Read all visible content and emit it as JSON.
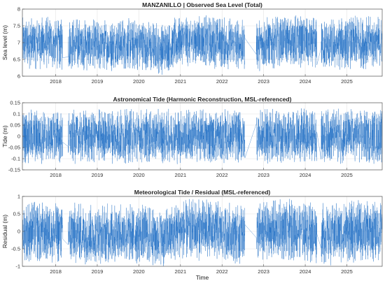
{
  "chart_data": [
    {
      "type": "line",
      "title": "MANZANILLO | Observed Sea Level (Total)",
      "xlabel": "",
      "ylabel": "Sea level (m)",
      "xlim": [
        2017.2,
        2025.85
      ],
      "ylim": [
        6,
        8
      ],
      "xticks": [
        "2018",
        "2019",
        "2020",
        "2021",
        "2022",
        "2023",
        "2024",
        "2025"
      ],
      "yticks": [
        "6",
        "6.5",
        "7",
        "7.5",
        "8"
      ],
      "grid": true,
      "color": "#1f6fc4",
      "series": [
        {
          "x": [
            2017.2,
            2017.7,
            2018.0,
            2018.12,
            2018.22,
            2018.3,
            2018.6,
            2019.0,
            2019.5,
            2020.0,
            2020.4,
            2020.6,
            2021.0,
            2021.5,
            2022.0,
            2022.3,
            2022.5,
            2022.6,
            2022.9,
            2023.4,
            2023.9,
            2024.2,
            2024.3,
            2024.35,
            2024.38,
            2024.5,
            2025.0,
            2025.5,
            2025.85
          ],
          "mean": [
            7.0,
            7.0,
            6.95,
            6.95,
            null,
            6.95,
            6.95,
            6.9,
            6.95,
            6.95,
            6.85,
            6.8,
            7.05,
            7.05,
            7.0,
            6.95,
            6.95,
            null,
            6.95,
            7.05,
            7.05,
            6.95,
            null,
            6.95,
            6.95,
            6.9,
            7.0,
            7.0,
            7.0
          ],
          "envelope_min": 6.15,
          "envelope_max": 7.75
        }
      ],
      "gaps": [
        [
          2018.17,
          2018.3
        ],
        [
          2022.55,
          2022.82
        ],
        [
          2024.28,
          2024.38
        ]
      ]
    },
    {
      "type": "line",
      "title": "Astronomical Tide (Harmonic Reconstruction, MSL-referenced)",
      "xlabel": "",
      "ylabel": "Tide (m)",
      "xlim": [
        2017.2,
        2025.85
      ],
      "ylim": [
        -0.15,
        0.15
      ],
      "xticks": [
        "2018",
        "2019",
        "2020",
        "2021",
        "2022",
        "2023",
        "2024",
        "2025"
      ],
      "yticks": [
        "-0.15",
        "-0.1",
        "-0.05",
        "0",
        "0.05",
        "0.1",
        "0.15"
      ],
      "grid": true,
      "color": "#1f6fc4",
      "series": [
        {
          "x": [
            2017.2,
            2018.0,
            2019.0,
            2020.0,
            2021.0,
            2022.0,
            2023.0,
            2024.0,
            2025.0,
            2025.85
          ],
          "mean": [
            0,
            0,
            0,
            0,
            0,
            0,
            0,
            0,
            0,
            0
          ],
          "envelope_min": -0.13,
          "envelope_max": 0.12
        }
      ],
      "gaps": [
        [
          2018.17,
          2018.3
        ],
        [
          2022.55,
          2022.82
        ],
        [
          2024.28,
          2024.38
        ]
      ]
    },
    {
      "type": "line",
      "title": "Meteorological Tide / Residual (MSL-referenced)",
      "xlabel": "Time",
      "ylabel": "Residual (m)",
      "xlim": [
        2017.2,
        2025.85
      ],
      "ylim": [
        -1,
        1
      ],
      "xticks": [
        "2018",
        "2019",
        "2020",
        "2021",
        "2022",
        "2023",
        "2024",
        "2025"
      ],
      "yticks": [
        "-1",
        "-0.5",
        "0",
        "0.5",
        "1"
      ],
      "grid": true,
      "color": "#1f6fc4",
      "series": [
        {
          "x": [
            2017.2,
            2017.7,
            2018.0,
            2018.12,
            2018.22,
            2018.3,
            2018.6,
            2019.0,
            2019.5,
            2020.0,
            2020.4,
            2020.6,
            2021.0,
            2021.5,
            2022.0,
            2022.3,
            2022.5,
            2022.6,
            2022.9,
            2023.4,
            2023.9,
            2024.2,
            2024.3,
            2024.35,
            2024.38,
            2024.5,
            2025.0,
            2025.5,
            2025.85
          ],
          "mean": [
            0.0,
            0.0,
            -0.05,
            -0.05,
            null,
            -0.05,
            -0.05,
            -0.1,
            -0.05,
            -0.05,
            -0.15,
            -0.2,
            0.05,
            0.05,
            0.0,
            -0.05,
            -0.05,
            null,
            -0.05,
            0.05,
            0.05,
            -0.05,
            null,
            -0.05,
            -0.05,
            -0.1,
            0.0,
            0.0,
            0.0
          ],
          "envelope_min": -0.9,
          "envelope_max": 0.9
        }
      ],
      "gaps": [
        [
          2018.17,
          2018.3
        ],
        [
          2022.55,
          2022.82
        ],
        [
          2024.28,
          2024.38
        ]
      ]
    }
  ]
}
